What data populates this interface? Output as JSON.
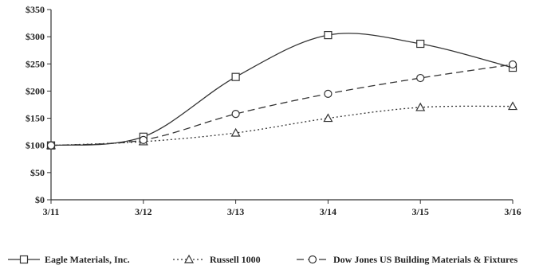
{
  "chart_data": {
    "type": "line",
    "categories": [
      "3/11",
      "3/12",
      "3/13",
      "3/14",
      "3/15",
      "3/16"
    ],
    "ylim": [
      0,
      350
    ],
    "yticks": [
      0,
      50,
      100,
      150,
      200,
      250,
      300,
      350
    ],
    "ytick_labels": [
      "$0",
      "$50",
      "$100",
      "$150",
      "$200",
      "$250",
      "$300",
      "$350"
    ],
    "grid": false,
    "legend_position": "bottom",
    "series": [
      {
        "name": "Eagle Materials, Inc.",
        "values": [
          100,
          116,
          226,
          303,
          287,
          243
        ],
        "marker": "square",
        "line_style": "solid",
        "color": "#333333"
      },
      {
        "name": "Russell 1000",
        "values": [
          100,
          107,
          123,
          150,
          170,
          172
        ],
        "marker": "triangle",
        "line_style": "dotted",
        "color": "#333333"
      },
      {
        "name": "Dow Jones US Building Materials & Fixtures",
        "values": [
          100,
          110,
          158,
          195,
          224,
          249
        ],
        "marker": "circle",
        "line_style": "dashed",
        "color": "#333333"
      }
    ]
  }
}
